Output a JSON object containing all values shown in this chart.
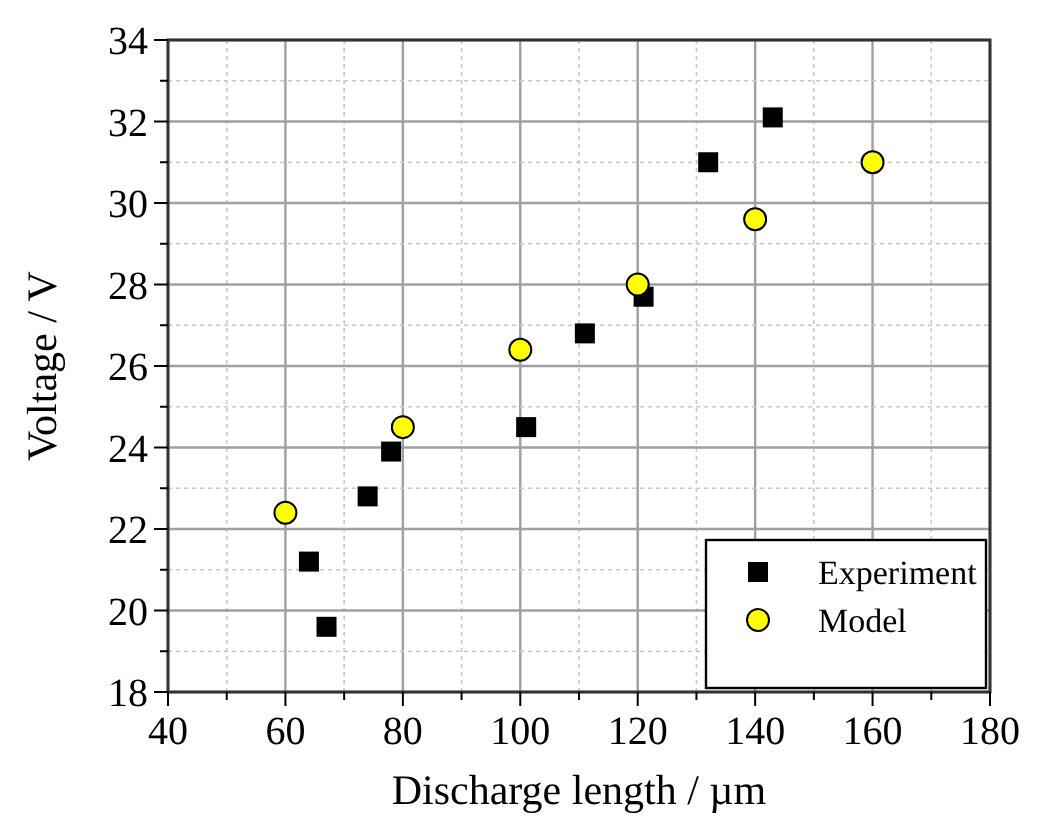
{
  "chart_data": {
    "type": "scatter",
    "xlabel": "Discharge length / µm",
    "ylabel": "Voltage / V",
    "xlim": [
      40,
      180
    ],
    "ylim": [
      18,
      34
    ],
    "xticks": [
      40,
      {
        "value": 50,
        "label": null
      },
      60,
      {
        "value": 70,
        "label": null
      },
      80,
      {
        "value": 90,
        "label": null
      },
      100,
      {
        "value": 110,
        "label": null
      },
      120,
      {
        "value": 130,
        "label": null
      },
      140,
      {
        "value": 150,
        "label": null
      },
      160,
      {
        "value": 170,
        "label": null
      },
      180
    ],
    "yticks": [
      18,
      {
        "value": 19,
        "label": null
      },
      20,
      {
        "value": 21,
        "label": null
      },
      22,
      {
        "value": 23,
        "label": null
      },
      24,
      {
        "value": 25,
        "label": null
      },
      26,
      {
        "value": 27,
        "label": null
      },
      28,
      {
        "value": 29,
        "label": null
      },
      30,
      {
        "value": 31,
        "label": null
      },
      32,
      {
        "value": 33,
        "label": null
      },
      34
    ],
    "grid": true,
    "legend": "bottom right",
    "series": [
      {
        "name": "Experiment",
        "color": "#000000",
        "marker": "square",
        "x": [
          64,
          67,
          74,
          78,
          101,
          111,
          121,
          132,
          143
        ],
        "values": [
          21.2,
          19.6,
          22.8,
          23.9,
          24.5,
          26.8,
          27.7,
          31.0,
          32.1
        ]
      },
      {
        "name": "Model",
        "color": "#ffff00",
        "marker": "circle",
        "x": [
          60,
          80,
          100,
          120,
          140,
          160
        ],
        "values": [
          22.4,
          24.5,
          26.4,
          28.0,
          29.6,
          31.0
        ]
      }
    ]
  }
}
